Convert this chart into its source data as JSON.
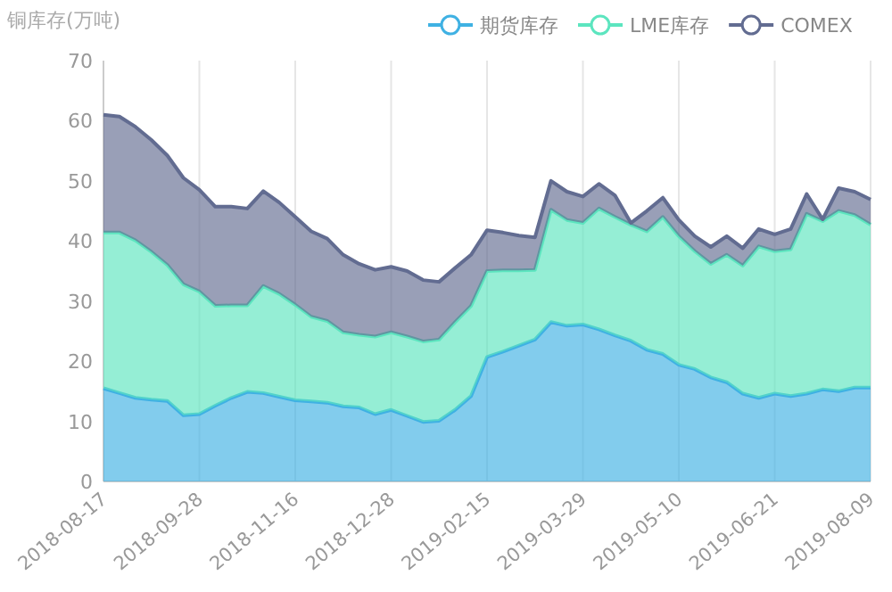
{
  "chart_data": {
    "type": "area",
    "stacked": true,
    "ylabel": "铜库存(万吨)",
    "legend": "top right",
    "grid": "x",
    "categories": [
      "2018-08-17",
      null,
      null,
      null,
      null,
      null,
      "2018-09-28",
      null,
      null,
      null,
      null,
      null,
      "2018-11-16",
      null,
      null,
      null,
      null,
      null,
      "2018-12-28",
      null,
      null,
      null,
      null,
      null,
      "2019-02-15",
      null,
      null,
      null,
      null,
      null,
      "2019-03-29",
      null,
      null,
      null,
      null,
      null,
      "2019-05-10",
      null,
      null,
      null,
      null,
      null,
      "2019-06-21",
      null,
      null,
      null,
      null,
      null,
      "2019-08-09"
    ],
    "ylim": [
      0,
      70
    ],
    "yticks": [
      0,
      10,
      20,
      30,
      40,
      50,
      60,
      70
    ],
    "series": [
      {
        "name": "期货库存",
        "color": "#3fb1e3",
        "values": [
          15.5,
          14.7,
          13.9,
          13.6,
          13.4,
          11.0,
          11.2,
          12.6,
          13.9,
          14.9,
          14.7,
          14.1,
          13.5,
          13.3,
          13.1,
          12.5,
          12.3,
          11.2,
          11.9,
          10.9,
          9.9,
          10.1,
          11.9,
          14.2,
          20.7,
          21.6,
          22.6,
          23.6,
          26.5,
          25.9,
          26.1,
          25.3,
          24.3,
          23.4,
          21.9,
          21.2,
          19.4,
          18.7,
          17.3,
          16.5,
          14.6,
          13.9,
          14.6,
          14.2,
          14.6,
          15.3,
          15.0,
          15.6,
          15.6
        ]
      },
      {
        "name": "LME库存",
        "color": "#5ce5bf",
        "values": [
          25.9,
          26.7,
          26.2,
          24.6,
          22.6,
          21.8,
          20.4,
          16.6,
          15.4,
          14.4,
          17.8,
          17.1,
          15.9,
          14.1,
          13.6,
          12.3,
          12.1,
          12.9,
          12.9,
          13.2,
          13.4,
          13.5,
          14.6,
          15.0,
          14.3,
          13.5,
          12.5,
          11.6,
          18.7,
          17.6,
          16.9,
          20.1,
          19.7,
          19.3,
          19.7,
          22.8,
          21.4,
          19.6,
          18.9,
          21.2,
          21.3,
          25.2,
          23.7,
          24.4,
          29.9,
          28.0,
          30.0,
          28.7,
          27.1
        ]
      },
      {
        "name": "COMEX",
        "color": "#626c91",
        "values": [
          19.6,
          19.3,
          18.9,
          18.6,
          18.2,
          17.7,
          16.9,
          16.5,
          16.4,
          16.1,
          15.8,
          15.2,
          14.6,
          14.2,
          13.7,
          12.9,
          11.8,
          11.1,
          10.9,
          10.9,
          10.2,
          9.6,
          9.0,
          8.5,
          6.8,
          6.3,
          5.8,
          5.4,
          4.8,
          4.7,
          4.4,
          4.1,
          3.6,
          0.3,
          3.4,
          3.2,
          2.7,
          2.5,
          2.8,
          3.1,
          2.9,
          2.9,
          2.8,
          3.4,
          3.3,
          0.3,
          3.8,
          3.9,
          4.2
        ]
      }
    ]
  }
}
